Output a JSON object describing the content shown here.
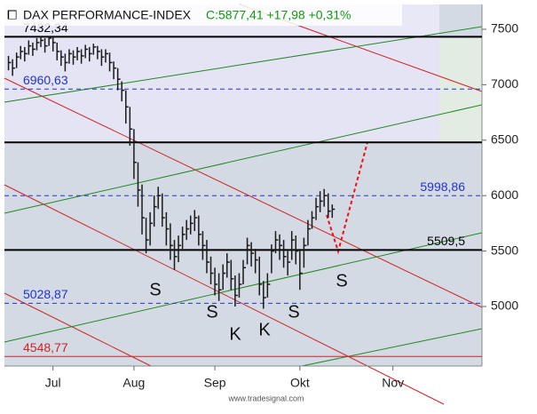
{
  "chart_data": {
    "type": "ohlc",
    "title": "DAX PERFORMANCE-INDEX",
    "quote": "C:5877,41 +17,98 +0,31%",
    "footer": "www.tradesignal.com",
    "color": "#1a1a1a",
    "xlim": [
      -1,
      117
    ],
    "xticks": [
      {
        "value": 11,
        "label": "Jul"
      },
      {
        "value": 31,
        "label": "Aug"
      },
      {
        "value": 51,
        "label": "Sep"
      },
      {
        "value": 72,
        "label": "Okt"
      },
      {
        "value": 95,
        "label": "Nov"
      }
    ],
    "ylim": [
      4463,
      7724
    ],
    "yticks": [
      5000,
      5500,
      6000,
      6500,
      7000,
      7500
    ],
    "close": [
      7200,
      7150,
      7250,
      7300,
      7280,
      7350,
      7320,
      7380,
      7400,
      7350,
      7420,
      7380,
      7300,
      7250,
      7200,
      7280,
      7250,
      7300,
      7260,
      7320,
      7280,
      7340,
      7300,
      7250,
      7280,
      7200,
      7150,
      7050,
      6950,
      6800,
      6600,
      6300,
      6050,
      5800,
      5600,
      5750,
      5900,
      6000,
      5800,
      5700,
      5550,
      5450,
      5550,
      5650,
      5700,
      5750,
      5800,
      5650,
      5550,
      5400,
      5300,
      5200,
      5150,
      5300,
      5400,
      5250,
      5100,
      5200,
      5350,
      5550,
      5480,
      5420,
      5200,
      5080,
      5200,
      5500,
      5600,
      5550,
      5450,
      5400,
      5600,
      5500,
      5300,
      5550,
      5700,
      5800,
      5900,
      5950,
      6000,
      5860,
      5877.41
    ],
    "high": [
      7260,
      7230,
      7290,
      7350,
      7340,
      7400,
      7380,
      7420,
      7440,
      7420,
      7440,
      7430,
      7380,
      7310,
      7280,
      7320,
      7310,
      7340,
      7320,
      7360,
      7340,
      7370,
      7350,
      7320,
      7320,
      7290,
      7210,
      7150,
      7030,
      6950,
      6800,
      6600,
      6300,
      6100,
      5800,
      5850,
      6000,
      6080,
      6020,
      5850,
      5750,
      5600,
      5640,
      5720,
      5780,
      5820,
      5870,
      5820,
      5680,
      5600,
      5450,
      5350,
      5300,
      5380,
      5480,
      5420,
      5280,
      5300,
      5420,
      5620,
      5580,
      5520,
      5450,
      5230,
      5300,
      5560,
      5680,
      5650,
      5600,
      5500,
      5680,
      5640,
      5500,
      5620,
      5780,
      5860,
      5980,
      6040,
      6060,
      6020,
      5920
    ],
    "low": [
      7130,
      7080,
      7150,
      7230,
      7210,
      7270,
      7260,
      7310,
      7340,
      7290,
      7350,
      7300,
      7220,
      7170,
      7120,
      7190,
      7180,
      7220,
      7190,
      7240,
      7210,
      7270,
      7230,
      7170,
      7200,
      7120,
      7050,
      6950,
      6850,
      6650,
      6450,
      6150,
      5900,
      5650,
      5480,
      5550,
      5720,
      5880,
      5720,
      5550,
      5420,
      5330,
      5400,
      5520,
      5600,
      5650,
      5680,
      5550,
      5420,
      5300,
      5200,
      5100,
      5050,
      5150,
      5260,
      5150,
      5000,
      5080,
      5200,
      5380,
      5360,
      5300,
      5100,
      4980,
      5080,
      5300,
      5480,
      5420,
      5350,
      5280,
      5420,
      5380,
      5150,
      5350,
      5550,
      5700,
      5780,
      5850,
      5900,
      5800,
      5800
    ],
    "levels": [
      {
        "value": 7432.34,
        "label": "7432,34",
        "color": "#000000",
        "style": "solid"
      },
      {
        "value": 6960.63,
        "label": "6960,63",
        "color": "#2233cc",
        "style": "dashed"
      },
      {
        "value": 6480,
        "color": "#000000",
        "style": "solid"
      },
      {
        "value": 5998.86,
        "label": "5998,86",
        "color": "#2233cc",
        "style": "dashed"
      },
      {
        "value": 5509.5,
        "label": "5509,5",
        "color": "#000000",
        "style": "solid"
      },
      {
        "value": 5028.87,
        "label": "5028,87",
        "color": "#2233cc",
        "style": "dashed"
      },
      {
        "value": 4548.77,
        "label": "4548,77",
        "color": "#cc2222",
        "style": "solid"
      }
    ],
    "annotations": [
      "S",
      "S",
      "K",
      "K",
      "S",
      "S"
    ]
  }
}
